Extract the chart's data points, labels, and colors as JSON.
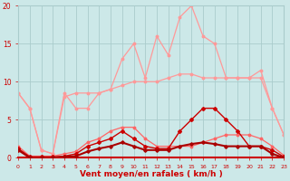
{
  "x": [
    0,
    1,
    2,
    3,
    4,
    5,
    6,
    7,
    8,
    9,
    10,
    11,
    12,
    13,
    14,
    15,
    16,
    17,
    18,
    19,
    20,
    21,
    22,
    23
  ],
  "line_gust_peak": [
    8.5,
    6.5,
    1.0,
    0.5,
    8.5,
    6.5,
    6.5,
    8.5,
    9.0,
    13.0,
    15.0,
    10.5,
    16.0,
    13.5,
    18.5,
    20.0,
    16.0,
    15.0,
    10.5,
    10.5,
    10.5,
    11.5,
    6.5,
    3.0
  ],
  "line_avg_smooth": [
    8.5,
    6.5,
    1.0,
    0.5,
    8.0,
    8.5,
    8.5,
    8.5,
    9.0,
    9.5,
    10.0,
    10.0,
    10.0,
    10.5,
    11.0,
    11.0,
    10.5,
    10.5,
    10.5,
    10.5,
    10.5,
    10.5,
    6.5,
    3.0
  ],
  "line_med_red": [
    1.5,
    0.2,
    0.2,
    0.2,
    0.5,
    0.8,
    2.0,
    2.5,
    3.5,
    4.0,
    4.0,
    2.5,
    1.5,
    1.5,
    1.5,
    1.5,
    2.0,
    2.5,
    3.0,
    3.0,
    3.0,
    2.5,
    1.5,
    0.3
  ],
  "line_dark_red": [
    1.2,
    0.1,
    0.1,
    0.1,
    0.2,
    0.5,
    1.5,
    2.0,
    2.5,
    3.5,
    2.5,
    1.5,
    1.2,
    1.2,
    3.5,
    5.0,
    6.5,
    6.5,
    5.0,
    3.5,
    1.5,
    1.5,
    1.0,
    0.1
  ],
  "line_bold_dark": [
    1.0,
    0.0,
    0.0,
    0.0,
    0.1,
    0.2,
    0.8,
    1.2,
    1.5,
    2.0,
    1.5,
    1.0,
    1.0,
    1.0,
    1.5,
    1.8,
    2.0,
    1.8,
    1.5,
    1.5,
    1.5,
    1.5,
    0.5,
    0.0
  ],
  "bg_color": "#cce8e8",
  "grid_color": "#aacccc",
  "color_light_pink": "#ff9999",
  "color_med_red": "#ff6666",
  "color_dark_red": "#cc0000",
  "color_bold_dark": "#aa0000",
  "xlabel": "Vent moyen/en rafales ( km/h )",
  "ylim": [
    0,
    20
  ],
  "xlim": [
    0,
    23
  ]
}
